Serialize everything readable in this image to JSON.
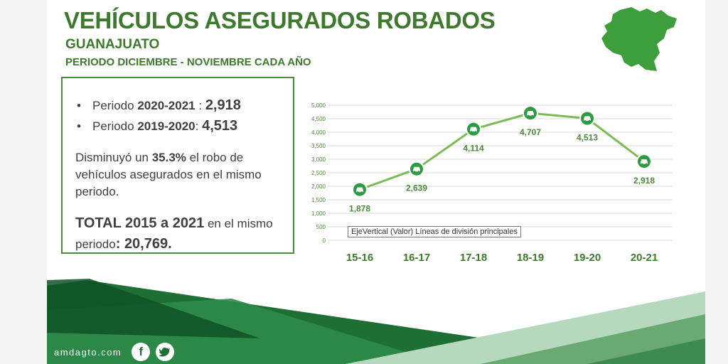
{
  "header": {
    "title": "VEHÍCULOS ASEGURADOS ROBADOS",
    "subtitle": "GUANAJUATO",
    "period": "PERIODO DICIEMBRE - NOVIEMBRE CADA AÑO"
  },
  "summary": {
    "item1_prefix": "Periodo ",
    "item1_period": "2020-2021",
    "item1_sep": " : ",
    "item1_value": "2,918",
    "item2_prefix": "Periodo ",
    "item2_period": "2019-2020",
    "item2_sep": ": ",
    "item2_value": "4,513",
    "desc_prefix": "Disminuyó un ",
    "desc_percent": "35.3%",
    "desc_suffix": " el robo de vehículos asegurados en el mismo periodo.",
    "total_label": "TOTAL 2015 a 2021",
    "total_mid": " en el mismo periodo",
    "total_colon": ": ",
    "total_value": "20,769."
  },
  "tooltip": "EjeVertical (Valor)  Líneas de división principales",
  "footer": {
    "site": "amdagto.com",
    "icons": [
      "facebook-icon",
      "twitter-icon"
    ]
  },
  "colors": {
    "green": "#3e7a2e",
    "dark_green": "#1e6f34",
    "marker": "#2f9a44",
    "line": "#7cbc55"
  },
  "chart_data": {
    "type": "line",
    "categories": [
      "15-16",
      "16-17",
      "17-18",
      "18-19",
      "19-20",
      "20-21"
    ],
    "values": [
      1878,
      2639,
      4114,
      4707,
      4513,
      2918
    ],
    "data_labels": [
      "1,878",
      "2,639",
      "4,114",
      "4,707",
      "4,513",
      "2,918"
    ],
    "yticks": [
      0,
      500,
      1000,
      1500,
      2000,
      2500,
      3000,
      3500,
      4000,
      4500,
      5000
    ],
    "ytick_labels": [
      "0",
      "500",
      "1,000",
      "1,500",
      "2,000",
      "2,500",
      "3,000",
      "3,500",
      "4,000",
      "4,500",
      "5,000"
    ],
    "ylim": [
      0,
      5000
    ],
    "grid": true,
    "marker_icon": "car-icon"
  }
}
